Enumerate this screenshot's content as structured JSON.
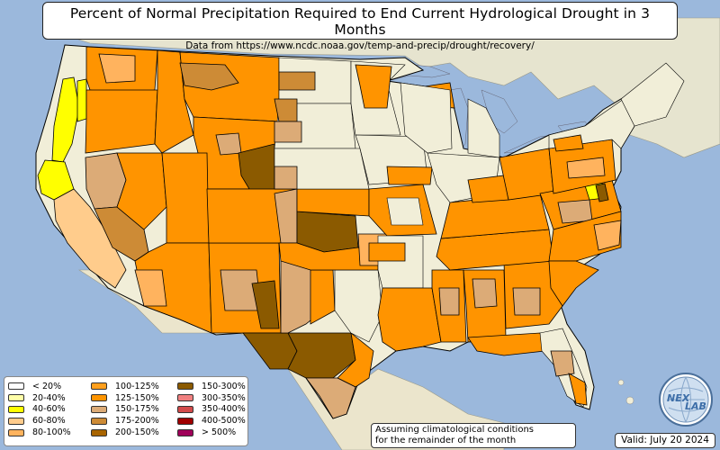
{
  "title": "Percent of Normal Precipitation Required to End Current Hydrological Drought in 3 Months",
  "subtitle": "Data from https://www.ncdc.noaa.gov/temp-and-precip/drought/recovery/",
  "note_line1": "Assuming climatological conditions",
  "note_line2": "for the remainder of the month",
  "valid_text": "Valid: July 20 2024",
  "logo_text_top": "NEX",
  "logo_text_bottom": "LAB",
  "colors": {
    "ocean": "#9bb8dc",
    "land": "#f1eed8",
    "lt20": "#ffffff",
    "20_40": "#ffffa8",
    "40_60": "#ffff00",
    "60_80": "#ffcc8c",
    "80_100": "#ffb35e",
    "100_125": "#ff9f1c",
    "125_150": "#ff9400",
    "150_175": "#dcab77",
    "175_200": "#cd8b36",
    "200_150": "#a86400",
    "150_300": "#8b5a00",
    "300_350": "#f08080",
    "350_400": "#d24b4b",
    "400_500": "#a00000",
    "gt500": "#a0005a"
  },
  "legend": [
    {
      "label": "< 20%",
      "color": "#ffffff"
    },
    {
      "label": "20-40%",
      "color": "#ffffa8"
    },
    {
      "label": "40-60%",
      "color": "#ffff00"
    },
    {
      "label": "60-80%",
      "color": "#ffcc8c"
    },
    {
      "label": "80-100%",
      "color": "#ffb35e"
    },
    {
      "label": "100-125%",
      "color": "#ff9f1c"
    },
    {
      "label": "125-150%",
      "color": "#ff9400"
    },
    {
      "label": "150-175%",
      "color": "#dcab77"
    },
    {
      "label": "175-200%",
      "color": "#cd8b36"
    },
    {
      "label": "200-150%",
      "color": "#a86400"
    },
    {
      "label": "150-300%",
      "color": "#8b5a00"
    },
    {
      "label": "300-350%",
      "color": "#f08080"
    },
    {
      "label": "350-400%",
      "color": "#d24b4b"
    },
    {
      "label": "400-500%",
      "color": "#a00000"
    },
    {
      "label": "> 500%",
      "color": "#a0005a"
    }
  ]
}
